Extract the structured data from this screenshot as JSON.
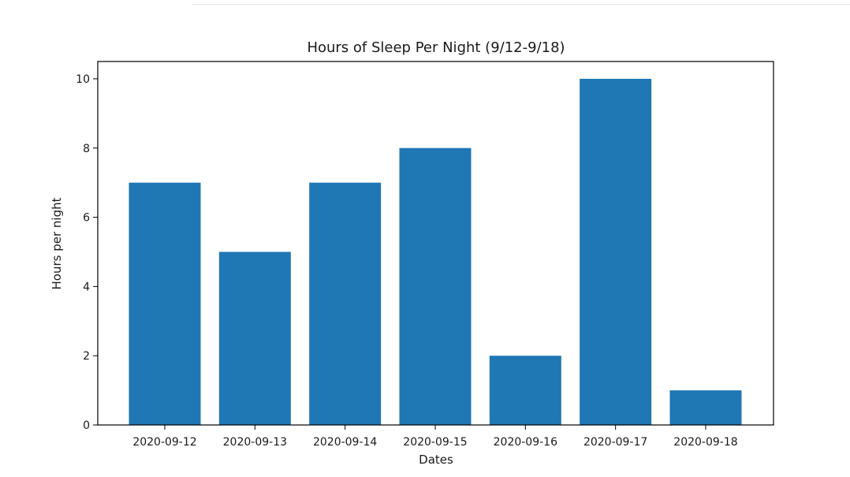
{
  "chart_data": {
    "type": "bar",
    "title": "Hours of Sleep Per Night (9/12-9/18)",
    "xlabel": "Dates",
    "ylabel": "Hours per night",
    "categories": [
      "2020-09-12",
      "2020-09-13",
      "2020-09-14",
      "2020-09-15",
      "2020-09-16",
      "2020-09-17",
      "2020-09-18"
    ],
    "values": [
      7,
      5,
      7,
      8,
      2,
      10,
      1
    ],
    "ylim": [
      0,
      10.5
    ],
    "yticks": [
      "0",
      "2",
      "4",
      "6",
      "8",
      "10"
    ],
    "grid": false,
    "bar_color": "#1f77b4"
  }
}
